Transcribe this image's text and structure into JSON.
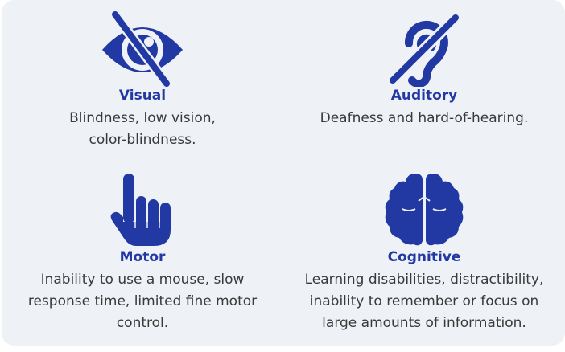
{
  "colors": {
    "accent": "#2238a3",
    "text": "#3a3a3a",
    "panel": "#eef1f6"
  },
  "cards": {
    "visual": {
      "icon": "eye-slash-icon",
      "title": "Visual",
      "line1": "Blindness, low vision,",
      "line2": "color-blindness."
    },
    "auditory": {
      "icon": "ear-slash-icon",
      "title": "Auditory",
      "line1": "Deafness and hard-of-hearing."
    },
    "motor": {
      "icon": "pointing-hand-icon",
      "title": "Motor",
      "line1": "Inability to use a mouse, slow",
      "line2": "response time, limited fine motor",
      "line3": "control."
    },
    "cognitive": {
      "icon": "brain-icon",
      "title": "Cognitive",
      "line1": "Learning disabilities, distractibility,",
      "line2": "inability to remember or focus on",
      "line3": "large amounts of information."
    }
  }
}
